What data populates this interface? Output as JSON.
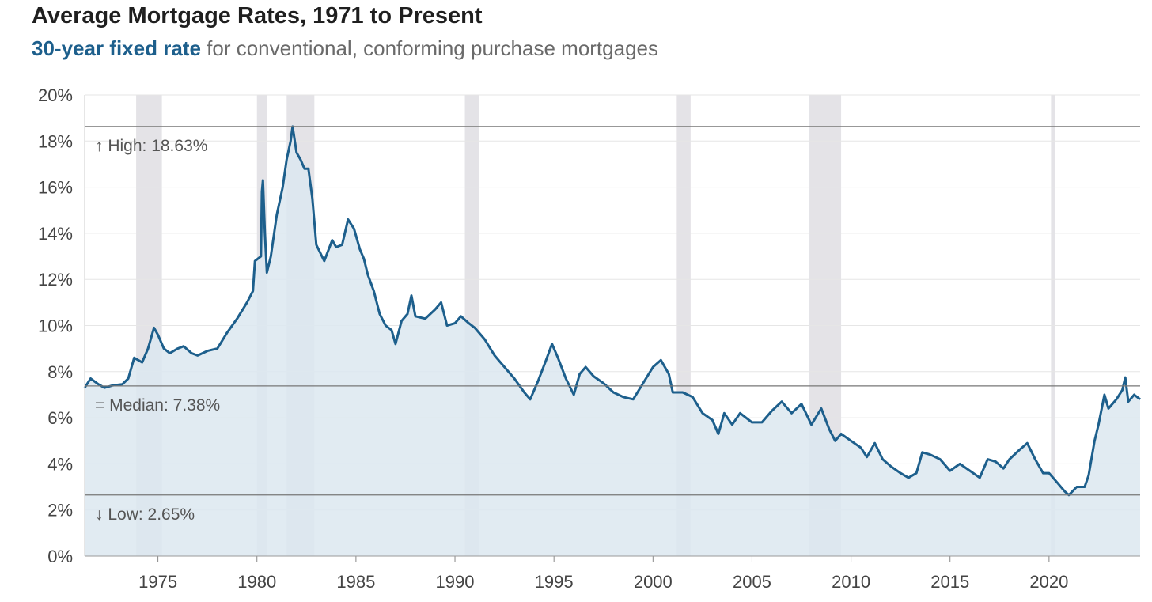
{
  "header": {
    "title": "Average Mortgage Rates, 1971 to Present",
    "subtitle_highlight": "30-year fixed rate",
    "subtitle_rest": " for conventional, conforming purchase mortgages"
  },
  "colors": {
    "line": "#1d5f8c",
    "area": "#dce7f0",
    "recession": "#e4e3e7",
    "reference": "#777777",
    "grid": "#e6e6e6"
  },
  "chart_data": {
    "type": "area",
    "title": "Average Mortgage Rates, 1971 to Present",
    "subtitle": "30-year fixed rate for conventional, conforming purchase mortgages",
    "xlim": [
      1971.3,
      2024.6
    ],
    "ylim": [
      0,
      20
    ],
    "yticks": [
      0,
      2,
      4,
      6,
      8,
      10,
      12,
      14,
      16,
      18,
      20
    ],
    "ytick_labels": [
      "0%",
      "2%",
      "4%",
      "6%",
      "8%",
      "10%",
      "12%",
      "14%",
      "16%",
      "18%",
      "20%"
    ],
    "xticks": [
      1975,
      1980,
      1985,
      1990,
      1995,
      2000,
      2005,
      2010,
      2015,
      2020
    ],
    "xtick_labels": [
      "1975",
      "1980",
      "1985",
      "1990",
      "1995",
      "2000",
      "2005",
      "2010",
      "2015",
      "2020"
    ],
    "grid": true,
    "reference_lines": [
      {
        "label": "↑ High: 18.63%",
        "value": 18.63
      },
      {
        "label": "= Median: 7.38%",
        "value": 7.38
      },
      {
        "label": "↓ Low: 2.65%",
        "value": 2.65
      }
    ],
    "recessions": [
      [
        1973.9,
        1975.2
      ],
      [
        1980.0,
        1980.5
      ],
      [
        1981.5,
        1982.9
      ],
      [
        1990.5,
        1991.2
      ],
      [
        2001.2,
        2001.9
      ],
      [
        2007.9,
        2009.5
      ],
      [
        2020.1,
        2020.3
      ]
    ],
    "series": [
      {
        "values": [
          [
            1971.3,
            7.3
          ],
          [
            1971.6,
            7.7
          ],
          [
            1972.0,
            7.45
          ],
          [
            1972.3,
            7.3
          ],
          [
            1972.7,
            7.4
          ],
          [
            1973.2,
            7.45
          ],
          [
            1973.5,
            7.7
          ],
          [
            1973.8,
            8.6
          ],
          [
            1974.0,
            8.5
          ],
          [
            1974.2,
            8.4
          ],
          [
            1974.5,
            9.0
          ],
          [
            1974.8,
            9.9
          ],
          [
            1975.0,
            9.6
          ],
          [
            1975.3,
            9.0
          ],
          [
            1975.6,
            8.8
          ],
          [
            1976.0,
            9.0
          ],
          [
            1976.3,
            9.1
          ],
          [
            1976.7,
            8.8
          ],
          [
            1977.0,
            8.7
          ],
          [
            1977.5,
            8.9
          ],
          [
            1978.0,
            9.0
          ],
          [
            1978.5,
            9.7
          ],
          [
            1979.0,
            10.3
          ],
          [
            1979.5,
            11.0
          ],
          [
            1979.8,
            11.5
          ],
          [
            1979.9,
            12.8
          ],
          [
            1980.2,
            13.0
          ],
          [
            1980.25,
            15.8
          ],
          [
            1980.3,
            16.3
          ],
          [
            1980.4,
            14.0
          ],
          [
            1980.5,
            12.3
          ],
          [
            1980.7,
            13.0
          ],
          [
            1981.0,
            14.8
          ],
          [
            1981.3,
            16.0
          ],
          [
            1981.5,
            17.2
          ],
          [
            1981.7,
            18.0
          ],
          [
            1981.8,
            18.63
          ],
          [
            1982.0,
            17.5
          ],
          [
            1982.2,
            17.2
          ],
          [
            1982.4,
            16.8
          ],
          [
            1982.6,
            16.8
          ],
          [
            1982.8,
            15.5
          ],
          [
            1983.0,
            13.5
          ],
          [
            1983.4,
            12.8
          ],
          [
            1983.8,
            13.7
          ],
          [
            1984.0,
            13.4
          ],
          [
            1984.3,
            13.5
          ],
          [
            1984.6,
            14.6
          ],
          [
            1984.9,
            14.2
          ],
          [
            1985.2,
            13.3
          ],
          [
            1985.4,
            12.9
          ],
          [
            1985.6,
            12.2
          ],
          [
            1985.9,
            11.5
          ],
          [
            1986.2,
            10.5
          ],
          [
            1986.5,
            10.0
          ],
          [
            1986.8,
            9.8
          ],
          [
            1987.0,
            9.2
          ],
          [
            1987.3,
            10.2
          ],
          [
            1987.6,
            10.5
          ],
          [
            1987.8,
            11.3
          ],
          [
            1988.0,
            10.4
          ],
          [
            1988.5,
            10.3
          ],
          [
            1989.0,
            10.7
          ],
          [
            1989.3,
            11.0
          ],
          [
            1989.6,
            10.0
          ],
          [
            1990.0,
            10.1
          ],
          [
            1990.3,
            10.4
          ],
          [
            1990.7,
            10.1
          ],
          [
            1991.0,
            9.9
          ],
          [
            1991.5,
            9.4
          ],
          [
            1992.0,
            8.7
          ],
          [
            1992.5,
            8.2
          ],
          [
            1993.0,
            7.7
          ],
          [
            1993.5,
            7.1
          ],
          [
            1993.8,
            6.8
          ],
          [
            1994.2,
            7.6
          ],
          [
            1994.6,
            8.5
          ],
          [
            1994.9,
            9.2
          ],
          [
            1995.2,
            8.6
          ],
          [
            1995.6,
            7.7
          ],
          [
            1996.0,
            7.0
          ],
          [
            1996.3,
            7.9
          ],
          [
            1996.6,
            8.2
          ],
          [
            1997.0,
            7.8
          ],
          [
            1997.5,
            7.5
          ],
          [
            1998.0,
            7.1
          ],
          [
            1998.5,
            6.9
          ],
          [
            1999.0,
            6.8
          ],
          [
            1999.5,
            7.5
          ],
          [
            2000.0,
            8.2
          ],
          [
            2000.4,
            8.5
          ],
          [
            2000.8,
            7.9
          ],
          [
            2001.0,
            7.1
          ],
          [
            2001.5,
            7.1
          ],
          [
            2002.0,
            6.9
          ],
          [
            2002.5,
            6.2
          ],
          [
            2003.0,
            5.9
          ],
          [
            2003.3,
            5.3
          ],
          [
            2003.6,
            6.2
          ],
          [
            2004.0,
            5.7
          ],
          [
            2004.4,
            6.2
          ],
          [
            2005.0,
            5.8
          ],
          [
            2005.5,
            5.8
          ],
          [
            2006.0,
            6.3
          ],
          [
            2006.5,
            6.7
          ],
          [
            2007.0,
            6.2
          ],
          [
            2007.5,
            6.6
          ],
          [
            2008.0,
            5.7
          ],
          [
            2008.5,
            6.4
          ],
          [
            2008.9,
            5.5
          ],
          [
            2009.2,
            5.0
          ],
          [
            2009.5,
            5.3
          ],
          [
            2010.0,
            5.0
          ],
          [
            2010.5,
            4.7
          ],
          [
            2010.8,
            4.3
          ],
          [
            2011.2,
            4.9
          ],
          [
            2011.6,
            4.2
          ],
          [
            2012.0,
            3.9
          ],
          [
            2012.5,
            3.6
          ],
          [
            2012.9,
            3.4
          ],
          [
            2013.3,
            3.6
          ],
          [
            2013.6,
            4.5
          ],
          [
            2014.0,
            4.4
          ],
          [
            2014.5,
            4.2
          ],
          [
            2015.0,
            3.7
          ],
          [
            2015.5,
            4.0
          ],
          [
            2016.0,
            3.7
          ],
          [
            2016.5,
            3.4
          ],
          [
            2016.9,
            4.2
          ],
          [
            2017.3,
            4.1
          ],
          [
            2017.7,
            3.8
          ],
          [
            2018.0,
            4.2
          ],
          [
            2018.5,
            4.6
          ],
          [
            2018.9,
            4.9
          ],
          [
            2019.3,
            4.2
          ],
          [
            2019.7,
            3.6
          ],
          [
            2020.0,
            3.6
          ],
          [
            2020.4,
            3.2
          ],
          [
            2020.8,
            2.8
          ],
          [
            2021.0,
            2.65
          ],
          [
            2021.4,
            3.0
          ],
          [
            2021.8,
            3.0
          ],
          [
            2022.0,
            3.5
          ],
          [
            2022.3,
            5.0
          ],
          [
            2022.5,
            5.7
          ],
          [
            2022.8,
            7.0
          ],
          [
            2023.0,
            6.4
          ],
          [
            2023.4,
            6.8
          ],
          [
            2023.7,
            7.2
          ],
          [
            2023.85,
            7.75
          ],
          [
            2024.0,
            6.7
          ],
          [
            2024.3,
            7.0
          ],
          [
            2024.6,
            6.8
          ]
        ]
      }
    ]
  }
}
